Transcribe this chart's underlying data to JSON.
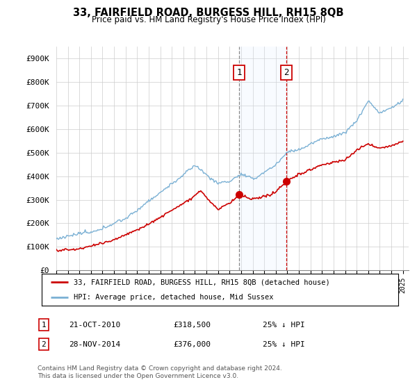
{
  "title": "33, FAIRFIELD ROAD, BURGESS HILL, RH15 8QB",
  "subtitle": "Price paid vs. HM Land Registry's House Price Index (HPI)",
  "ylabel_ticks": [
    "£0",
    "£100K",
    "£200K",
    "£300K",
    "£400K",
    "£500K",
    "£600K",
    "£700K",
    "£800K",
    "£900K"
  ],
  "ytick_values": [
    0,
    100000,
    200000,
    300000,
    400000,
    500000,
    600000,
    700000,
    800000,
    900000
  ],
  "ylim": [
    0,
    950000
  ],
  "xlim_start": 1995.0,
  "xlim_end": 2025.5,
  "transaction1_date": 2010.81,
  "transaction1_label": "1",
  "transaction1_price": 318500,
  "transaction2_date": 2014.91,
  "transaction2_label": "2",
  "transaction2_price": 376000,
  "legend_line1": "33, FAIRFIELD ROAD, BURGESS HILL, RH15 8QB (detached house)",
  "legend_line2": "HPI: Average price, detached house, Mid Sussex",
  "footnote": "Contains HM Land Registry data © Crown copyright and database right 2024.\nThis data is licensed under the Open Government Licence v3.0.",
  "line_color_property": "#cc0000",
  "line_color_hpi": "#7ab0d4",
  "shaded_color": "#ddeeff",
  "vline1_color": "#888888",
  "vline2_color": "#cc0000",
  "background_color": "#ffffff",
  "grid_color": "#cccccc"
}
